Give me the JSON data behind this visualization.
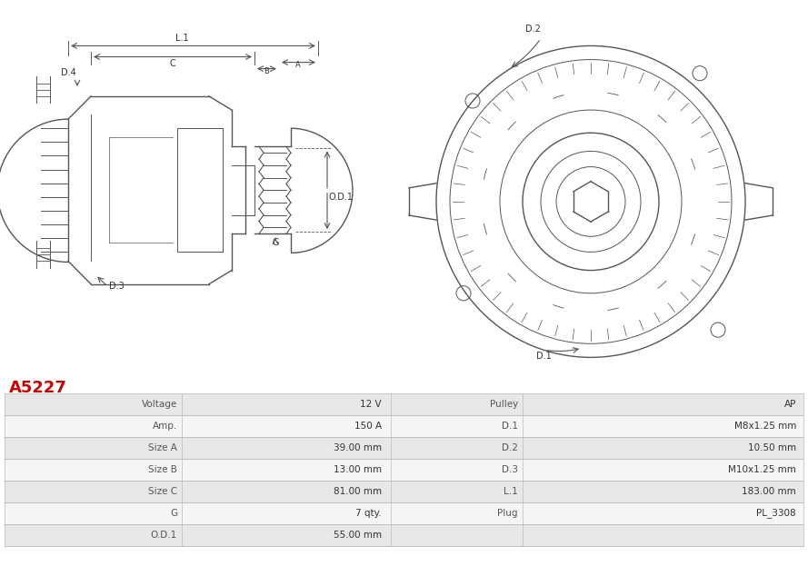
{
  "title": "A5227",
  "title_color": "#cc0000",
  "table_headers_left": [
    "Voltage",
    "Amp.",
    "Size A",
    "Size B",
    "Size C",
    "G",
    "O.D.1"
  ],
  "table_values_left": [
    "12 V",
    "150 A",
    "39.00 mm",
    "13.00 mm",
    "81.00 mm",
    "7 qty.",
    "55.00 mm"
  ],
  "table_headers_mid": [
    "Pulley",
    "D.1",
    "D.2",
    "D.3",
    "L.1",
    "Plug",
    ""
  ],
  "table_values_mid": [
    "AP",
    "M8x1.25 mm",
    "10.50 mm",
    "M10x1.25 mm",
    "183.00 mm",
    "PL_3308",
    ""
  ],
  "bg_color": "#ffffff",
  "row_color_odd": "#e8e8e8",
  "row_color_even": "#f5f5f5",
  "border_color": "#cccccc",
  "text_color": "#333333",
  "label_color": "#555555"
}
